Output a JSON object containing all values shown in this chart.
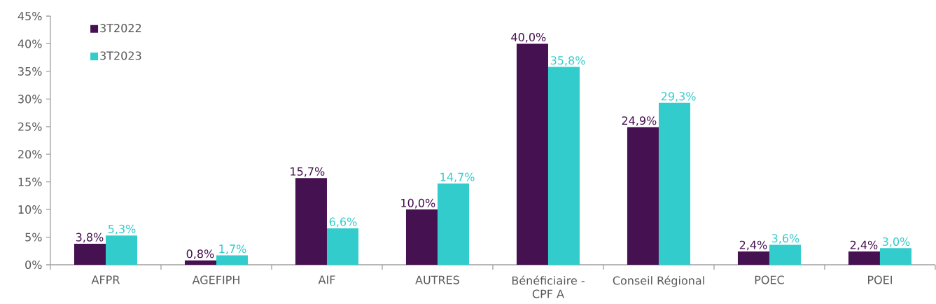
{
  "chart_data": {
    "type": "bar",
    "categories": [
      "AFPR",
      "AGEFIPH",
      "AIF",
      "AUTRES",
      "Bénéficiaire - CPF A",
      "Conseil Régional",
      "POEC",
      "POEI"
    ],
    "series": [
      {
        "name": "3T2022",
        "color": "#461150",
        "values": [
          3.8,
          0.8,
          15.7,
          10.0,
          40.0,
          24.9,
          2.4,
          2.4
        ],
        "value_labels": [
          "3,8%",
          "0,8%",
          "15,7%",
          "10,0%",
          "40,0%",
          "24,9%",
          "2,4%",
          "2,4%"
        ]
      },
      {
        "name": "3T2023",
        "color": "#33CCCC",
        "values": [
          5.3,
          1.7,
          6.6,
          14.7,
          35.8,
          29.3,
          3.6,
          3.0
        ],
        "value_labels": [
          "5,3%",
          "1,7%",
          "6,6%",
          "14,7%",
          "35,8%",
          "29,3%",
          "3,6%",
          "3,0%"
        ]
      }
    ],
    "ylim": [
      0,
      45
    ],
    "yticks": [
      {
        "value": 0,
        "label": "0%"
      },
      {
        "value": 5,
        "label": "5%"
      },
      {
        "value": 10,
        "label": "10%"
      },
      {
        "value": 15,
        "label": "15%"
      },
      {
        "value": 20,
        "label": "20%"
      },
      {
        "value": 25,
        "label": "25%"
      },
      {
        "value": 30,
        "label": "30%"
      },
      {
        "value": 35,
        "label": "35%"
      },
      {
        "value": 40,
        "label": "40%"
      },
      {
        "value": 45,
        "label": "45%"
      }
    ],
    "legend": "top left"
  }
}
